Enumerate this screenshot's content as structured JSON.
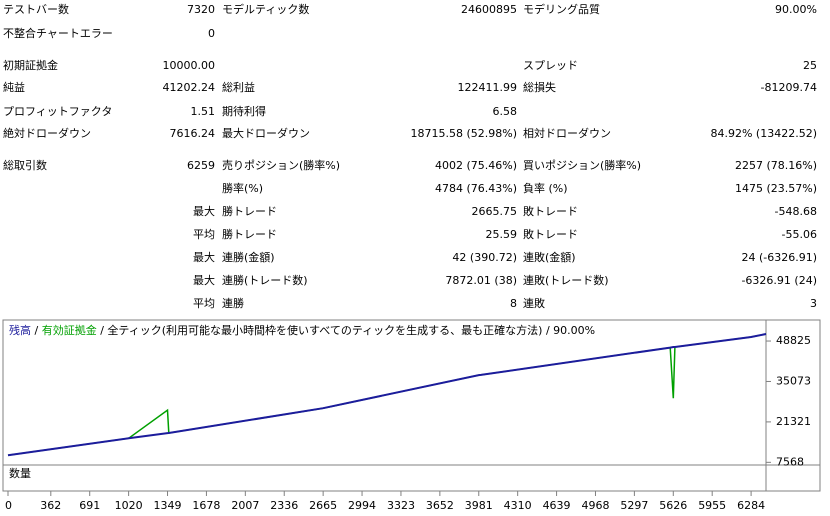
{
  "report": {
    "rows": [
      [
        "テストバー数",
        "7320",
        "モデルティック数",
        "24600895",
        "モデリング品質",
        "90.00%"
      ],
      [
        "不整合チャートエラー",
        "0",
        null,
        null,
        null,
        null
      ],
      [
        "初期証拠金",
        "10000.00",
        null,
        null,
        "スプレッド",
        "25"
      ],
      [
        "純益",
        "41202.24",
        "総利益",
        "122411.99",
        "総損失",
        "-81209.74"
      ],
      [
        "プロフィットファクタ",
        "1.51",
        "期待利得",
        "6.58",
        null,
        null
      ],
      [
        "絶対ドローダウン",
        "7616.24",
        "最大ドローダウン",
        "18715.58 (52.98%)",
        "相対ドローダウン",
        "84.92% (13422.52)"
      ],
      [
        "総取引数",
        "6259",
        "売りポジション(勝率%)",
        "4002 (75.46%)",
        "買いポジション(勝率%)",
        "2257 (78.16%)"
      ],
      [
        null,
        null,
        "勝率(%)",
        "4784 (76.43%)",
        "負率 (%)",
        "1475 (23.57%)"
      ],
      [
        null,
        "最大",
        "勝トレード",
        "2665.75",
        "敗トレード",
        "-548.68"
      ],
      [
        null,
        "平均",
        "勝トレード",
        "25.59",
        "敗トレード",
        "-55.06"
      ],
      [
        null,
        "最大",
        "連勝(金額)",
        "42 (390.72)",
        "連敗(金額)",
        "24 (-6326.91)"
      ],
      [
        null,
        "最大",
        "連勝(トレード数)",
        "7872.01 (38)",
        "連敗(トレード数)",
        "-6326.91 (24)"
      ],
      [
        null,
        "平均",
        "連勝",
        "8",
        "連敗",
        "3"
      ]
    ]
  },
  "chart_data": {
    "type": "line",
    "legend_separator": "/",
    "subtitle": "/ 全ティック(利用可能な最小時間枠を使いすべてのティックを生成する、最も正確な方法) / 90.00%",
    "volume_label": "数量",
    "x": [
      0,
      1020,
      1349,
      1360,
      2665,
      3981,
      4000,
      5600,
      5626,
      5640,
      6284,
      6410
    ],
    "series": [
      {
        "name": "有効証拠金",
        "color": "#00a000",
        "values": [
          10000,
          15750,
          25300,
          17550,
          25980,
          37230,
          37300,
          46600,
          29390,
          46800,
          50190,
          51202
        ]
      },
      {
        "name": "残高",
        "color": "#1c1c9c",
        "values": [
          10000,
          15750,
          17500,
          17550,
          25980,
          37230,
          37300,
          46600,
          46780,
          46800,
          50190,
          51202
        ]
      }
    ],
    "xlim": [
      0,
      6410
    ],
    "ylim": [
      7000,
      55300
    ],
    "xticks": [
      0,
      362,
      691,
      1020,
      1349,
      1678,
      2007,
      2336,
      2665,
      2994,
      3323,
      3652,
      3981,
      4310,
      4639,
      4968,
      5297,
      5626,
      5955,
      6284
    ],
    "yticks": [
      7568,
      21321,
      35073,
      48825
    ]
  }
}
